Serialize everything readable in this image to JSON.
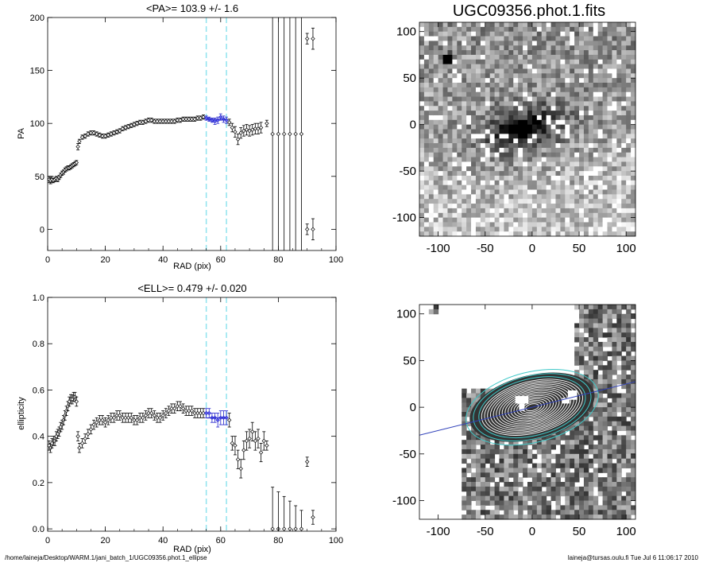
{
  "footer": {
    "path": "/home/laineja/Desktop/WARM.1/jani_batch_1/UGC09356.phot.1_ellipse",
    "user_stamp": "laineja@tursas.oulu.fi  Tue Jul  6 11:06:17 2010"
  },
  "chart_data": [
    {
      "type": "scatter",
      "title": "<PA>= 103.9 +/-   1.6",
      "xlabel": "RAD (pix)",
      "ylabel": "PA",
      "xlim": [
        0,
        100
      ],
      "ylim": [
        -20,
        200
      ],
      "xticks": [
        0,
        20,
        40,
        60,
        80,
        100
      ],
      "yticks": [
        0,
        50,
        100,
        150,
        200
      ],
      "dashed_lines_x": [
        55,
        62
      ],
      "fit_mean": 103.9,
      "fit_range": [
        55,
        62
      ],
      "points": [
        [
          0.5,
          47,
          3
        ],
        [
          1,
          46,
          3
        ],
        [
          1.5,
          47,
          3
        ],
        [
          2,
          46,
          2
        ],
        [
          2.5,
          47,
          2
        ],
        [
          3,
          48,
          2
        ],
        [
          3.5,
          47,
          2
        ],
        [
          4,
          49,
          2
        ],
        [
          4.5,
          51,
          2
        ],
        [
          5,
          53,
          2
        ],
        [
          5.5,
          54,
          2
        ],
        [
          6,
          56,
          2
        ],
        [
          6.5,
          57,
          2
        ],
        [
          7,
          58,
          2
        ],
        [
          7.5,
          58,
          2
        ],
        [
          8,
          59,
          2
        ],
        [
          8.5,
          60,
          2
        ],
        [
          9,
          61,
          2
        ],
        [
          9.5,
          62,
          2
        ],
        [
          10,
          63,
          2
        ],
        [
          10.5,
          78,
          3
        ],
        [
          11,
          83,
          2
        ],
        [
          12,
          87,
          2
        ],
        [
          13,
          88,
          2
        ],
        [
          14,
          90,
          2
        ],
        [
          15,
          91,
          2
        ],
        [
          16,
          91,
          2
        ],
        [
          17,
          90,
          2
        ],
        [
          18,
          89,
          2
        ],
        [
          19,
          88,
          2
        ],
        [
          20,
          88,
          2
        ],
        [
          21,
          89,
          2
        ],
        [
          22,
          90,
          2
        ],
        [
          23,
          91,
          2
        ],
        [
          24,
          92,
          2
        ],
        [
          25,
          93,
          2
        ],
        [
          26,
          95,
          2
        ],
        [
          27,
          96,
          2
        ],
        [
          28,
          97,
          2
        ],
        [
          29,
          98,
          2
        ],
        [
          30,
          99,
          2
        ],
        [
          31,
          100,
          2
        ],
        [
          32,
          101,
          2
        ],
        [
          33,
          101,
          2
        ],
        [
          34,
          102,
          2
        ],
        [
          35,
          103,
          2
        ],
        [
          36,
          103,
          2
        ],
        [
          37,
          102,
          2
        ],
        [
          38,
          102,
          2
        ],
        [
          39,
          102,
          2
        ],
        [
          40,
          102,
          2
        ],
        [
          41,
          102,
          2
        ],
        [
          42,
          102,
          2
        ],
        [
          43,
          102,
          2
        ],
        [
          44,
          102,
          2
        ],
        [
          45,
          103,
          2
        ],
        [
          46,
          103,
          2
        ],
        [
          47,
          104,
          2
        ],
        [
          48,
          104,
          2
        ],
        [
          49,
          104,
          2
        ],
        [
          50,
          104,
          2
        ],
        [
          51,
          104,
          2
        ],
        [
          52,
          105,
          2
        ],
        [
          53,
          105,
          2
        ],
        [
          54,
          106,
          2
        ],
        [
          55,
          105,
          2
        ],
        [
          56,
          104,
          2
        ],
        [
          57,
          103,
          2
        ],
        [
          58,
          102,
          3
        ],
        [
          59,
          103,
          3
        ],
        [
          60,
          106,
          3
        ],
        [
          61,
          104,
          3
        ],
        [
          62,
          103,
          3
        ],
        [
          63,
          101,
          3
        ],
        [
          64,
          96,
          4
        ],
        [
          65,
          92,
          5
        ],
        [
          66,
          85,
          5
        ],
        [
          67,
          91,
          5
        ],
        [
          68,
          93,
          5
        ],
        [
          69,
          94,
          5
        ],
        [
          70,
          93,
          5
        ],
        [
          71,
          94,
          5
        ],
        [
          72,
          95,
          5
        ],
        [
          73,
          95,
          5
        ],
        [
          74,
          96,
          5
        ],
        [
          76,
          100,
          3
        ],
        [
          78,
          90,
          200
        ],
        [
          80,
          90,
          200
        ],
        [
          82,
          90,
          200
        ],
        [
          84,
          90,
          200
        ],
        [
          86,
          90,
          200
        ],
        [
          88,
          90,
          200
        ],
        [
          90,
          180,
          5
        ],
        [
          90,
          0,
          5
        ],
        [
          92,
          180,
          10
        ],
        [
          92,
          0,
          10
        ]
      ]
    },
    {
      "type": "scatter",
      "title": "<ELL>= 0.479 +/-  0.020",
      "xlabel": "RAD (pix)",
      "ylabel": "ellipticity",
      "xlim": [
        0,
        100
      ],
      "ylim": [
        -0.01,
        1.0
      ],
      "xticks": [
        0,
        20,
        40,
        60,
        80,
        100
      ],
      "yticks": [
        0.0,
        0.2,
        0.4,
        0.6,
        0.8,
        1.0
      ],
      "dashed_lines_x": [
        55,
        62
      ],
      "fit_mean": 0.479,
      "fit_range": [
        55,
        62
      ],
      "points": [
        [
          0.5,
          0.36,
          0.02
        ],
        [
          1,
          0.35,
          0.02
        ],
        [
          1.5,
          0.37,
          0.02
        ],
        [
          2,
          0.38,
          0.02
        ],
        [
          2.5,
          0.38,
          0.02
        ],
        [
          3,
          0.4,
          0.02
        ],
        [
          3.5,
          0.41,
          0.02
        ],
        [
          4,
          0.42,
          0.02
        ],
        [
          4.5,
          0.44,
          0.02
        ],
        [
          5,
          0.45,
          0.02
        ],
        [
          5.5,
          0.47,
          0.02
        ],
        [
          6,
          0.49,
          0.02
        ],
        [
          6.5,
          0.51,
          0.02
        ],
        [
          7,
          0.53,
          0.02
        ],
        [
          7.5,
          0.55,
          0.02
        ],
        [
          8,
          0.56,
          0.02
        ],
        [
          8.5,
          0.56,
          0.02
        ],
        [
          9,
          0.57,
          0.02
        ],
        [
          9.5,
          0.57,
          0.02
        ],
        [
          10,
          0.55,
          0.02
        ],
        [
          10.5,
          0.4,
          0.02
        ],
        [
          11,
          0.35,
          0.02
        ],
        [
          12,
          0.37,
          0.02
        ],
        [
          13,
          0.39,
          0.02
        ],
        [
          14,
          0.41,
          0.02
        ],
        [
          15,
          0.43,
          0.02
        ],
        [
          16,
          0.45,
          0.02
        ],
        [
          17,
          0.46,
          0.02
        ],
        [
          18,
          0.47,
          0.02
        ],
        [
          19,
          0.47,
          0.02
        ],
        [
          20,
          0.46,
          0.02
        ],
        [
          21,
          0.47,
          0.02
        ],
        [
          22,
          0.48,
          0.02
        ],
        [
          23,
          0.48,
          0.02
        ],
        [
          24,
          0.49,
          0.02
        ],
        [
          25,
          0.49,
          0.02
        ],
        [
          26,
          0.48,
          0.02
        ],
        [
          27,
          0.48,
          0.02
        ],
        [
          28,
          0.48,
          0.02
        ],
        [
          29,
          0.48,
          0.02
        ],
        [
          30,
          0.47,
          0.02
        ],
        [
          31,
          0.47,
          0.02
        ],
        [
          32,
          0.48,
          0.02
        ],
        [
          33,
          0.48,
          0.02
        ],
        [
          34,
          0.49,
          0.02
        ],
        [
          35,
          0.5,
          0.02
        ],
        [
          36,
          0.5,
          0.02
        ],
        [
          37,
          0.49,
          0.02
        ],
        [
          38,
          0.48,
          0.02
        ],
        [
          39,
          0.48,
          0.02
        ],
        [
          40,
          0.49,
          0.02
        ],
        [
          41,
          0.5,
          0.02
        ],
        [
          42,
          0.51,
          0.02
        ],
        [
          43,
          0.52,
          0.02
        ],
        [
          44,
          0.52,
          0.02
        ],
        [
          45,
          0.53,
          0.02
        ],
        [
          46,
          0.53,
          0.02
        ],
        [
          47,
          0.52,
          0.02
        ],
        [
          48,
          0.51,
          0.02
        ],
        [
          49,
          0.51,
          0.02
        ],
        [
          50,
          0.51,
          0.02
        ],
        [
          51,
          0.5,
          0.02
        ],
        [
          52,
          0.5,
          0.02
        ],
        [
          53,
          0.5,
          0.02
        ],
        [
          54,
          0.5,
          0.02
        ],
        [
          55,
          0.5,
          0.02
        ],
        [
          56,
          0.5,
          0.02
        ],
        [
          57,
          0.48,
          0.02
        ],
        [
          58,
          0.48,
          0.02
        ],
        [
          59,
          0.47,
          0.03
        ],
        [
          60,
          0.48,
          0.03
        ],
        [
          61,
          0.48,
          0.03
        ],
        [
          62,
          0.48,
          0.03
        ],
        [
          63,
          0.47,
          0.03
        ],
        [
          64,
          0.37,
          0.03
        ],
        [
          65,
          0.36,
          0.04
        ],
        [
          66,
          0.3,
          0.04
        ],
        [
          67,
          0.26,
          0.04
        ],
        [
          68,
          0.34,
          0.04
        ],
        [
          69,
          0.38,
          0.04
        ],
        [
          70,
          0.39,
          0.04
        ],
        [
          71,
          0.42,
          0.04
        ],
        [
          72,
          0.38,
          0.04
        ],
        [
          73,
          0.39,
          0.04
        ],
        [
          74,
          0.33,
          0.04
        ],
        [
          75,
          0.38,
          0.04
        ],
        [
          76,
          0.36,
          0.02
        ],
        [
          78,
          0.0,
          0.18
        ],
        [
          80,
          0.0,
          0.16
        ],
        [
          82,
          0.0,
          0.14
        ],
        [
          84,
          0.0,
          0.12
        ],
        [
          86,
          0.0,
          0.1
        ],
        [
          88,
          0.0,
          0.08
        ],
        [
          90,
          0.29,
          0.02
        ],
        [
          92,
          0.05,
          0.03
        ]
      ]
    },
    {
      "type": "heatmap",
      "title": "UGC09356.phot.1.fits",
      "xlim": [
        -120,
        110
      ],
      "ylim": [
        -120,
        110
      ],
      "xticks": [
        -100,
        -50,
        0,
        50,
        100
      ],
      "yticks": [
        -100,
        -50,
        0,
        50,
        100
      ],
      "colormap": "inverted grayscale",
      "galaxy": {
        "x": -10,
        "y": -5,
        "pa_deg": 104,
        "ellipticity": 0.48
      },
      "star": {
        "x": -90,
        "y": 70
      }
    },
    {
      "type": "heatmap",
      "title": "",
      "xlim": [
        -120,
        110
      ],
      "ylim": [
        -120,
        110
      ],
      "xticks": [
        -100,
        -50,
        0,
        50,
        100
      ],
      "yticks": [
        -100,
        -50,
        0,
        50,
        100
      ],
      "colormap": "grayscale with contours",
      "contour_center": {
        "x": 0,
        "y": 0
      },
      "line_slope_deg": 14,
      "line_color": "#3344bb",
      "fit_ellipse_color": "#3fc8c8"
    }
  ]
}
